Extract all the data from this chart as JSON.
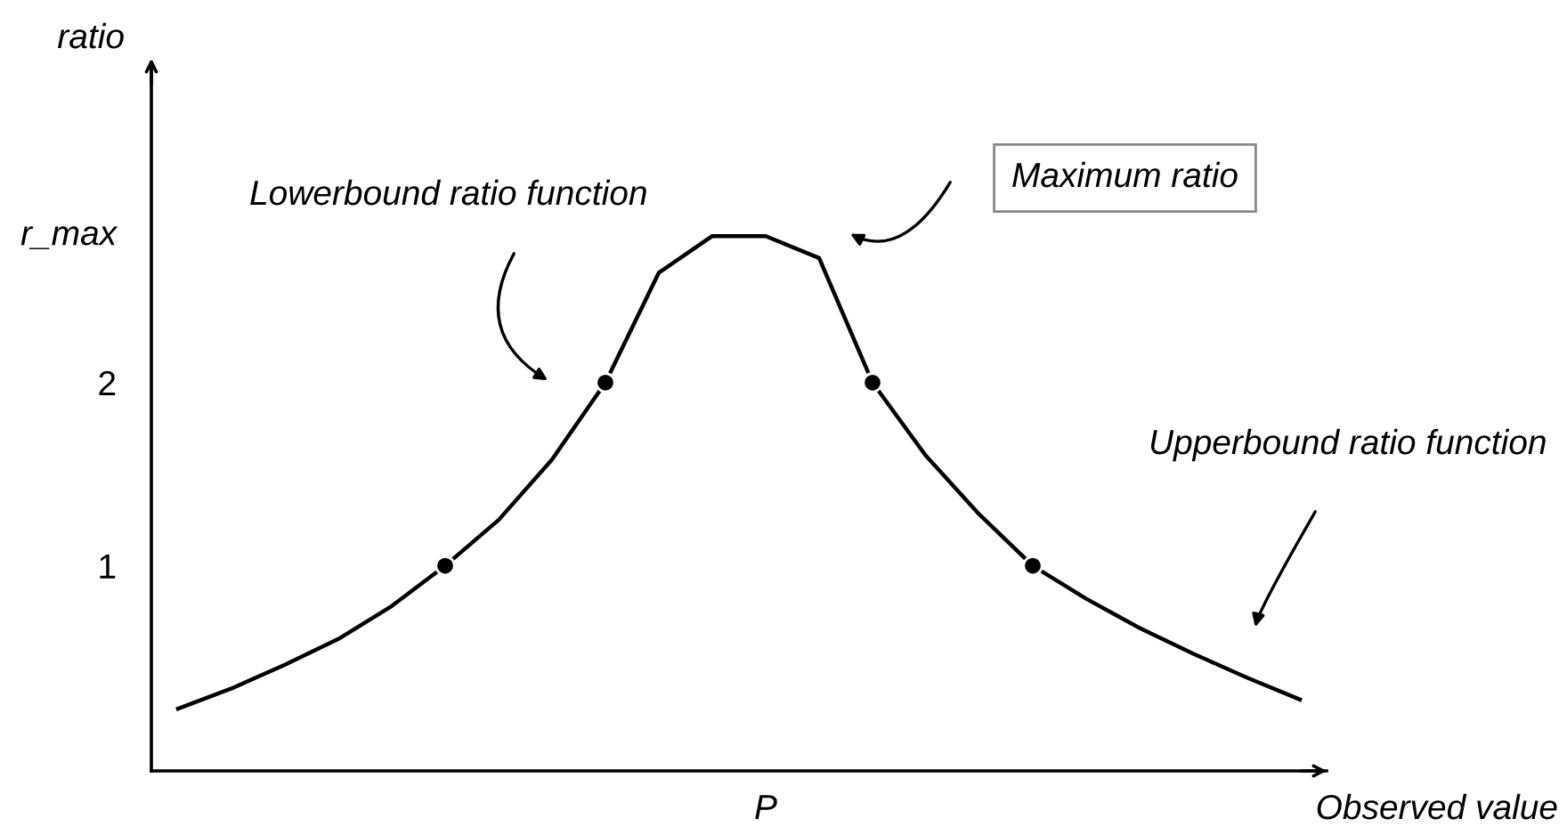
{
  "chart_data": {
    "type": "line",
    "ylabel": "ratio",
    "xlabel": "Observed value",
    "categories": [
      null,
      null,
      null,
      null,
      null,
      null,
      null,
      null,
      null,
      null,
      null,
      null,
      null,
      null,
      null,
      null,
      null,
      null,
      null,
      null,
      null,
      null
    ],
    "series": [
      {
        "color": "#000000",
        "values": [
          0.22,
          0.33,
          0.46,
          0.6,
          0.78,
          1.0,
          1.25,
          1.58,
          2.0,
          2.6,
          2.8,
          2.8,
          2.68,
          2.0,
          1.6,
          1.28,
          1.0,
          0.82,
          0.66,
          0.52,
          0.39,
          0.27
        ]
      },
      {
        "type": "scatter",
        "color": "#000000",
        "marker": "circle",
        "values": [
          null,
          null,
          null,
          null,
          null,
          1.0,
          null,
          null,
          2.0,
          null,
          null,
          null,
          null,
          2.0,
          null,
          null,
          1.0,
          null,
          null,
          null,
          null,
          null
        ]
      }
    ],
    "ylim": [
      -0.12,
      3.7
    ],
    "yticks": [
      1,
      2,
      {
        "value": 2.82,
        "label": "r_max"
      }
    ],
    "annotations": [
      "Lowerbound ratio function",
      "Maximum ratio",
      "Upperbound ratio function",
      "P"
    ],
    "grid": false,
    "legend": false
  }
}
